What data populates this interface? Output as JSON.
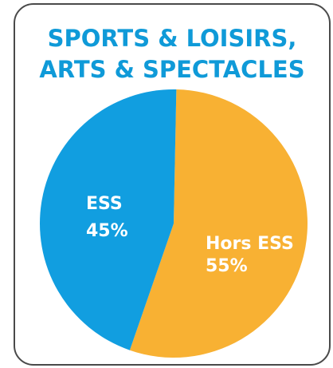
{
  "chart_data": {
    "type": "pie",
    "title": [
      "SPORTS & LOISIRS,",
      "ARTS & SPECTACLES"
    ],
    "categories": [
      "Hors ESS",
      "ESS"
    ],
    "values": [
      55,
      45
    ],
    "value_labels": [
      "55%",
      "45%"
    ],
    "colors": [
      "#f8b133",
      "#119ee0"
    ]
  }
}
